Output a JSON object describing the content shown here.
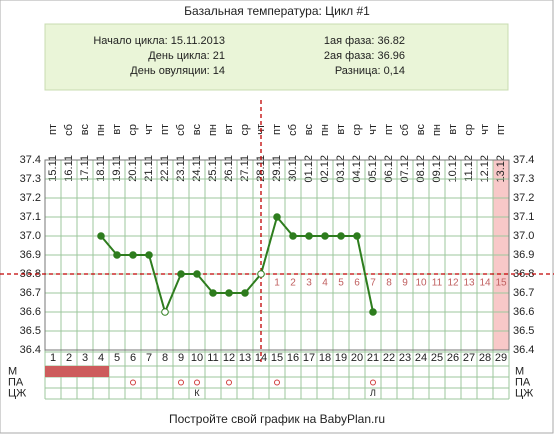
{
  "chart_data": {
    "type": "line",
    "title": "Базальная температура: Цикл #1",
    "info_left": [
      "Начало цикла: 15.11.2013",
      "День цикла: 21",
      "День овуляции: 14"
    ],
    "info_right": [
      "1ая фаза: 36.82",
      "2ая фаза: 36.96",
      "Разница: 0,14"
    ],
    "weekdays": [
      "пт",
      "сб",
      "вс",
      "пн",
      "вт",
      "ср",
      "чт",
      "пт",
      "сб",
      "вс",
      "пн",
      "вт",
      "ср",
      "чт",
      "пт",
      "сб",
      "вс",
      "пн",
      "вт",
      "ср",
      "чт",
      "пт",
      "сб",
      "вс",
      "пн",
      "вт",
      "ср",
      "чт",
      "пт"
    ],
    "dates": [
      "15.11",
      "16.11",
      "17.11",
      "18.11",
      "19.11",
      "20.11",
      "21.11",
      "22.11",
      "23.11",
      "24.11",
      "25.11",
      "26.11",
      "27.11",
      "28.11",
      "29.11",
      "30.11",
      "01.12",
      "02.12",
      "03.12",
      "04.12",
      "05.12",
      "06.12",
      "07.12",
      "08.12",
      "09.12",
      "10.12",
      "11.12",
      "12.12",
      "13.12"
    ],
    "categories": [
      1,
      2,
      3,
      4,
      5,
      6,
      7,
      8,
      9,
      10,
      11,
      12,
      13,
      14,
      15,
      16,
      17,
      18,
      19,
      20,
      21,
      22,
      23,
      24,
      25,
      26,
      27,
      28,
      29
    ],
    "values": [
      null,
      null,
      null,
      37.0,
      36.9,
      36.9,
      36.9,
      36.6,
      36.8,
      36.8,
      36.7,
      36.7,
      36.7,
      36.8,
      37.1,
      37.0,
      37.0,
      37.0,
      37.0,
      37.0,
      36.6,
      null,
      null,
      null,
      null,
      null,
      null,
      null,
      null
    ],
    "color": "#2e7d1e",
    "hollow_days": [
      8,
      14
    ],
    "ylim": [
      36.4,
      37.4
    ],
    "yticks": [
      {
        "value": 37.4,
        "label": "37.4"
      },
      37.3,
      37.2,
      37.1,
      {
        "value": 37,
        "label": "37.0"
      },
      36.9,
      36.8,
      36.7,
      36.6,
      36.5,
      36.4
    ],
    "coverline": 36.8,
    "ovulation_day": 14,
    "post_ovulation_days": [
      1,
      2,
      3,
      4,
      5,
      6,
      7,
      8,
      9,
      10,
      11,
      12,
      13,
      14,
      15
    ],
    "highlight_day": 29,
    "rows": [
      {
        "label": "М",
        "filled_days": [
          1,
          2,
          3,
          4
        ]
      },
      {
        "label": "ПА",
        "circle_days": [
          6,
          9,
          10,
          12,
          15,
          21
        ]
      },
      {
        "label": "ЦЖ",
        "cells": [
          null,
          null,
          null,
          null,
          null,
          null,
          null,
          null,
          null,
          "К",
          null,
          null,
          null,
          null,
          null,
          null,
          null,
          null,
          null,
          null,
          "Л",
          null,
          null,
          null,
          null,
          null,
          null,
          null,
          null
        ]
      }
    ],
    "footer": "Постройте свой график на BabyPlan.ru"
  }
}
